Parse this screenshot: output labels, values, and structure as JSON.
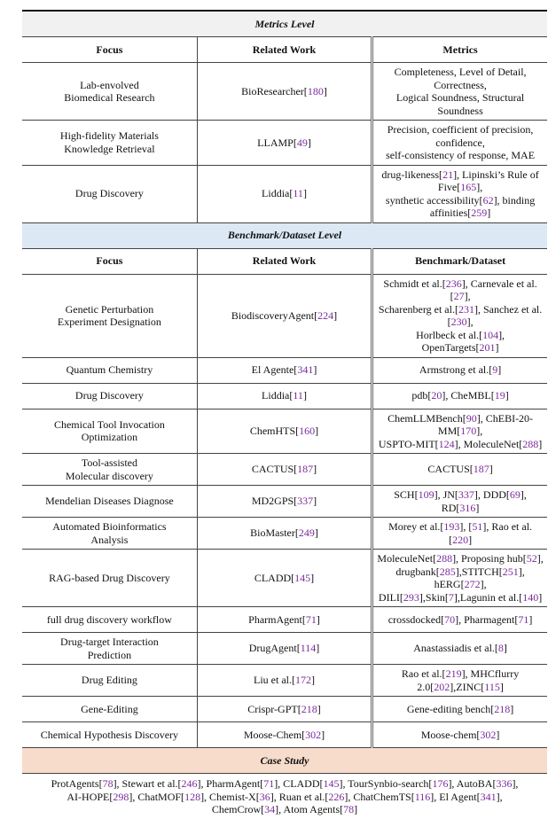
{
  "sections": [
    {
      "title": "Metrics Level",
      "headers": [
        "Focus",
        "Related Work",
        "Metrics"
      ],
      "rows": [
        [
          "Lab-envolved\nBiomedical Research",
          "BioResearcher[180]",
          "Completeness, Level of Detail, Correctness,\nLogical Soundness, Structural Soundness"
        ],
        [
          "High-fidelity Materials\nKnowledge Retrieval",
          "LLAMP[49]",
          "Precision, coefficient of precision, confidence,\nself-consistency of response, MAE"
        ],
        [
          "Drug Discovery",
          "Liddia[11]",
          "drug-likeness[21], Lipinski’s Rule of Five[165],\nsynthetic accessibility[62], binding affinities[259]"
        ]
      ]
    },
    {
      "title": "Benchmark/Dataset Level",
      "headers": [
        "Focus",
        "Related Work",
        "Benchmark/Dataset"
      ],
      "rows": [
        [
          "Genetic Perturbation\nExperiment Designation",
          "BiodiscoveryAgent[224]",
          "Schmidt et al.[236], Carnevale et al.[27],\nScharenberg et al.[231], Sanchez et al.[230],\nHorlbeck et al.[104], OpenTargets[201]"
        ],
        [
          "Quantum Chemistry",
          "El Agente[341]",
          "Armstrong et al.[9]"
        ],
        [
          "Drug Discovery",
          "Liddia[11]",
          "pdb[20], CheMBL[19]"
        ],
        [
          "Chemical Tool Invocation\nOptimization",
          "ChemHTS[160]",
          "ChemLLMBench[90], ChEBI-20-MM[170],\nUSPTO-MIT[124], MoleculeNet[288]"
        ],
        [
          "Tool-assisted\nMolecular discovery",
          "CACTUS[187]",
          "CACTUS[187]"
        ],
        [
          "Mendelian Diseases Diagnose",
          "MD2GPS[337]",
          "SCH[109], JN[337], DDD[69], RD[316]"
        ],
        [
          "Automated Bioinformatics\nAnalysis",
          "BioMaster[249]",
          "Morey et al.[193], [51], Rao et al.[220]"
        ],
        [
          "RAG-based Drug Discovery",
          "CLADD[145]",
          "MoleculeNet[288], Proposing hub[52],\ndrugbank[285],STITCH[251], hERG[272],\nDILI[293],Skin[7],Lagunin et al.[140]"
        ],
        [
          "full drug discovery workflow",
          "PharmAgent[71]",
          "crossdocked[70], Pharmagent[71]"
        ],
        [
          "Drug-target Interaction\nPrediction",
          "DrugAgent[114]",
          "Anastassiadis et al.[8]"
        ],
        [
          "Drug Editing",
          "Liu et al.[172]",
          "Rao et al.[219], MHCflurry 2.0[202],ZINC[115]"
        ],
        [
          "Gene-Editing",
          "Crispr-GPT[218]",
          "Gene-editing bench[218]"
        ],
        [
          "Chemical Hypothesis Discovery",
          "Moose-Chem[302]",
          "Moose-chem[302]"
        ]
      ]
    }
  ],
  "case_study": {
    "title": "Case Study",
    "text": "ProtAgents[78], Stewart et al.[246], PharmAgent[71], CLADD[145], TourSynbio-search[176], AutoBA[336],\nAI-HOPE[298], ChatMOF[128], Chemist-X[36], Ruan et al.[226], ChatChemTS[116], El Agent[341],\nChemCrow[34], Atom Agents[78]"
  }
}
